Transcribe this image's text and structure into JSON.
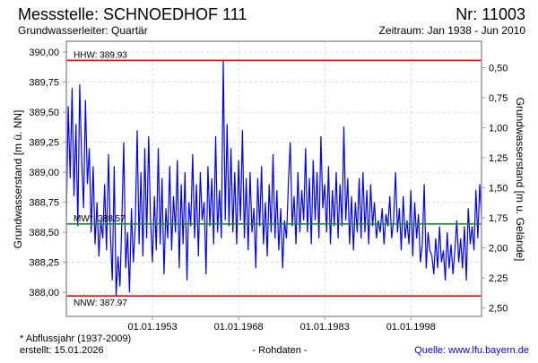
{
  "header": {
    "title": "Messstelle: SCHNOEDHOF 111",
    "number": "Nr: 11003",
    "aquifer": "Grundwasserleiter: Quartär",
    "period": "Zeitraum: Jan 1938 - Jun 2010"
  },
  "footer": {
    "note": "* Abflussjahr (1937-2009)",
    "created": "erstellt:  15.01.2026",
    "data_type": "- Rohdaten -",
    "source": "Quelle: www.lfu.bayern.de"
  },
  "colors": {
    "series": "#0000ff",
    "hhw": "#ff0000",
    "nnw": "#ff0000",
    "mw": "#228b22",
    "grid": "#dddddd"
  },
  "chart_data": {
    "type": "line",
    "ylabel": "Grundwasserstand [m ü. NN]",
    "ylabel_right": "Grundwasserstand [m u. Gelände]",
    "xlim": [
      1938.0,
      2010.3
    ],
    "ylim": [
      387.8,
      390.09
    ],
    "ground_level": 390.37,
    "grid": true,
    "xticks": [
      {
        "value": 1953,
        "label": "01.01.1953"
      },
      {
        "value": 1968,
        "label": "01.01.1968"
      },
      {
        "value": 1983,
        "label": "01.01.1983"
      },
      {
        "value": 1998,
        "label": "01.01.1998"
      }
    ],
    "yticks": [
      {
        "value": 388.0,
        "label": "388,00"
      },
      {
        "value": 388.25,
        "label": "388,25"
      },
      {
        "value": 388.5,
        "label": "388,50"
      },
      {
        "value": 388.75,
        "label": "388,75"
      },
      {
        "value": 389.0,
        "label": "389,00"
      },
      {
        "value": 389.25,
        "label": "389,25"
      },
      {
        "value": 389.5,
        "label": "389,50"
      },
      {
        "value": 389.75,
        "label": "389,75"
      },
      {
        "value": 390.0,
        "label": "390,00"
      }
    ],
    "yticks_right": [
      {
        "value": 0.5,
        "label": "0,50"
      },
      {
        "value": 0.75,
        "label": "0,75"
      },
      {
        "value": 1.0,
        "label": "1,00"
      },
      {
        "value": 1.25,
        "label": "1,25"
      },
      {
        "value": 1.5,
        "label": "1,50"
      },
      {
        "value": 1.75,
        "label": "1,75"
      },
      {
        "value": 2.0,
        "label": "2,00"
      },
      {
        "value": 2.25,
        "label": "2,25"
      },
      {
        "value": 2.5,
        "label": "2,50"
      }
    ],
    "reference_lines": [
      {
        "name": "HHW",
        "value": 389.93,
        "label": "HHW: 389.93",
        "color": "#ff0000"
      },
      {
        "name": "MW",
        "value": 388.57,
        "label": "MW*: 388.57",
        "color": "#228b22"
      },
      {
        "name": "NNW",
        "value": 387.97,
        "label": "NNW: 387.97",
        "color": "#ff0000"
      }
    ],
    "x_start": 1938.0,
    "x_step": 0.3333,
    "values": [
      388.62,
      389.55,
      388.95,
      389.7,
      388.8,
      389.4,
      388.55,
      389.73,
      389.1,
      388.7,
      389.6,
      388.9,
      389.2,
      388.5,
      389.05,
      388.4,
      388.75,
      388.3,
      388.6,
      388.45,
      388.9,
      388.35,
      389.15,
      388.5,
      388.1,
      389.05,
      387.97,
      388.3,
      388.05,
      388.6,
      389.25,
      388.2,
      388.5,
      388.0,
      388.7,
      388.25,
      388.55,
      389.35,
      388.4,
      389.0,
      388.3,
      389.2,
      388.45,
      389.3,
      388.6,
      388.25,
      388.8,
      388.35,
      389.2,
      388.4,
      388.95,
      388.15,
      388.7,
      388.45,
      389.05,
      388.35,
      388.8,
      388.5,
      389.1,
      388.2,
      388.9,
      388.4,
      389.0,
      388.1,
      388.75,
      388.55,
      389.15,
      388.45,
      388.9,
      388.3,
      389.0,
      388.6,
      388.75,
      388.15,
      389.05,
      388.55,
      388.95,
      388.4,
      389.3,
      388.5,
      388.85,
      388.45,
      389.93,
      388.6,
      389.4,
      388.55,
      389.2,
      388.5,
      389.0,
      388.4,
      389.1,
      388.6,
      389.35,
      388.45,
      388.95,
      388.35,
      389.0,
      388.5,
      388.7,
      388.2,
      388.95,
      388.55,
      389.05,
      388.4,
      388.75,
      388.3,
      388.9,
      388.5,
      389.15,
      388.45,
      388.85,
      388.35,
      388.7,
      388.2,
      388.6,
      388.45,
      388.9,
      389.25,
      388.55,
      388.8,
      388.4,
      389.0,
      388.5,
      388.85,
      388.6,
      389.2,
      388.5,
      388.95,
      388.4,
      389.1,
      388.6,
      389.0,
      388.45,
      389.3,
      388.7,
      388.9,
      388.5,
      389.05,
      388.4,
      388.85,
      388.55,
      389.0,
      388.45,
      388.9,
      388.55,
      389.38,
      388.6,
      388.95,
      388.4,
      388.8,
      388.35,
      388.75,
      388.5,
      388.95,
      388.45,
      389.0,
      388.5,
      388.85,
      388.4,
      388.9,
      388.55,
      388.75,
      388.45,
      388.6,
      388.5,
      388.7,
      388.4,
      388.65,
      388.55,
      388.8,
      388.45,
      388.6,
      389.0,
      388.5,
      388.7,
      388.35,
      388.8,
      388.45,
      388.6,
      388.4,
      388.85,
      388.3,
      388.75,
      388.45,
      388.65,
      388.25,
      388.4,
      388.9,
      388.2,
      388.5,
      388.35,
      388.3,
      388.15,
      388.45,
      388.2,
      388.55,
      388.25,
      388.35,
      388.1,
      388.5,
      388.2,
      388.4,
      388.15,
      388.35,
      388.6,
      388.25,
      388.45,
      388.2,
      388.55,
      388.1,
      388.7,
      388.4,
      388.55,
      388.35,
      388.85,
      388.45,
      388.9,
      388.6
    ]
  }
}
